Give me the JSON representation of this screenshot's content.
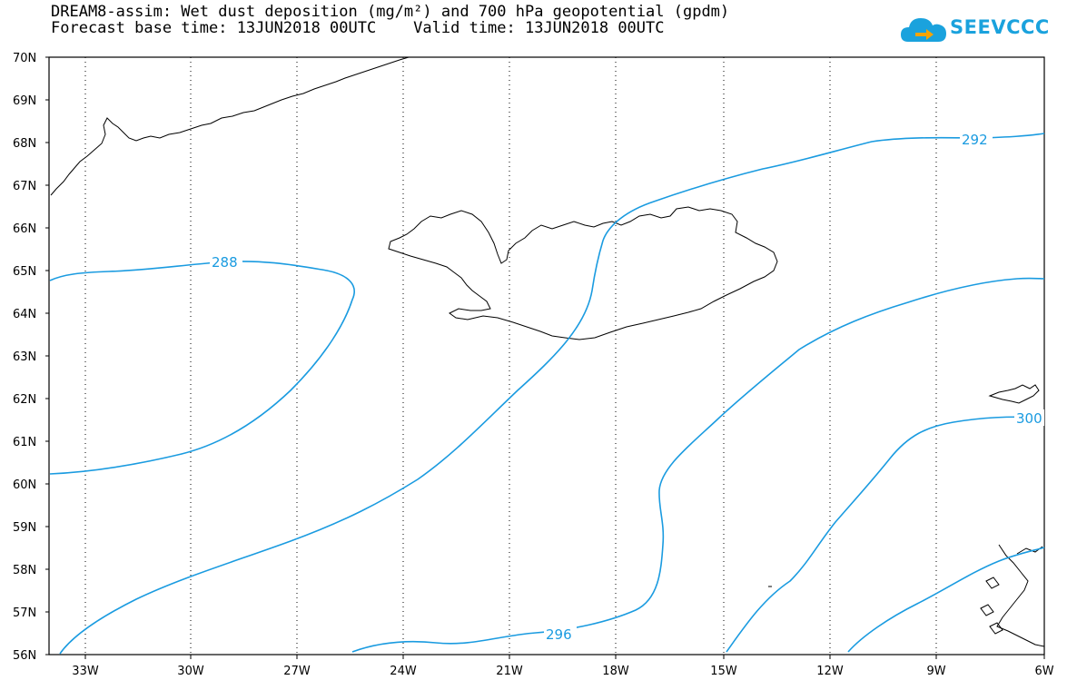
{
  "title_line1": "DREAM8-assim: Wet dust deposition (mg/m²) and 700 hPa geopotential (gpdm)",
  "title_line2": "Forecast base time: 13JUN2018 00UTC    Valid time: 13JUN2018 00UTC",
  "logo_text": "SEEVCCC",
  "lat_labels": [
    "70N",
    "69N",
    "68N",
    "67N",
    "66N",
    "65N",
    "64N",
    "63N",
    "62N",
    "61N",
    "60N",
    "59N",
    "58N",
    "57N",
    "56N"
  ],
  "lon_labels": [
    "33W",
    "30W",
    "27W",
    "24W",
    "21W",
    "18W",
    "15W",
    "12W",
    "9W",
    "6W"
  ],
  "contour_labels": {
    "c288": "288",
    "c292": "292",
    "c296": "296",
    "c300": "300"
  },
  "colors": {
    "contour": "#1a9be0",
    "coast": "#000000",
    "logo": "#1aa2dd",
    "logo_arrow": "#f7a400"
  },
  "map_extent": {
    "lon_min": -34.3,
    "lon_max": -6,
    "lat_min": 56,
    "lat_max": 70
  },
  "gridlines": "dotted"
}
